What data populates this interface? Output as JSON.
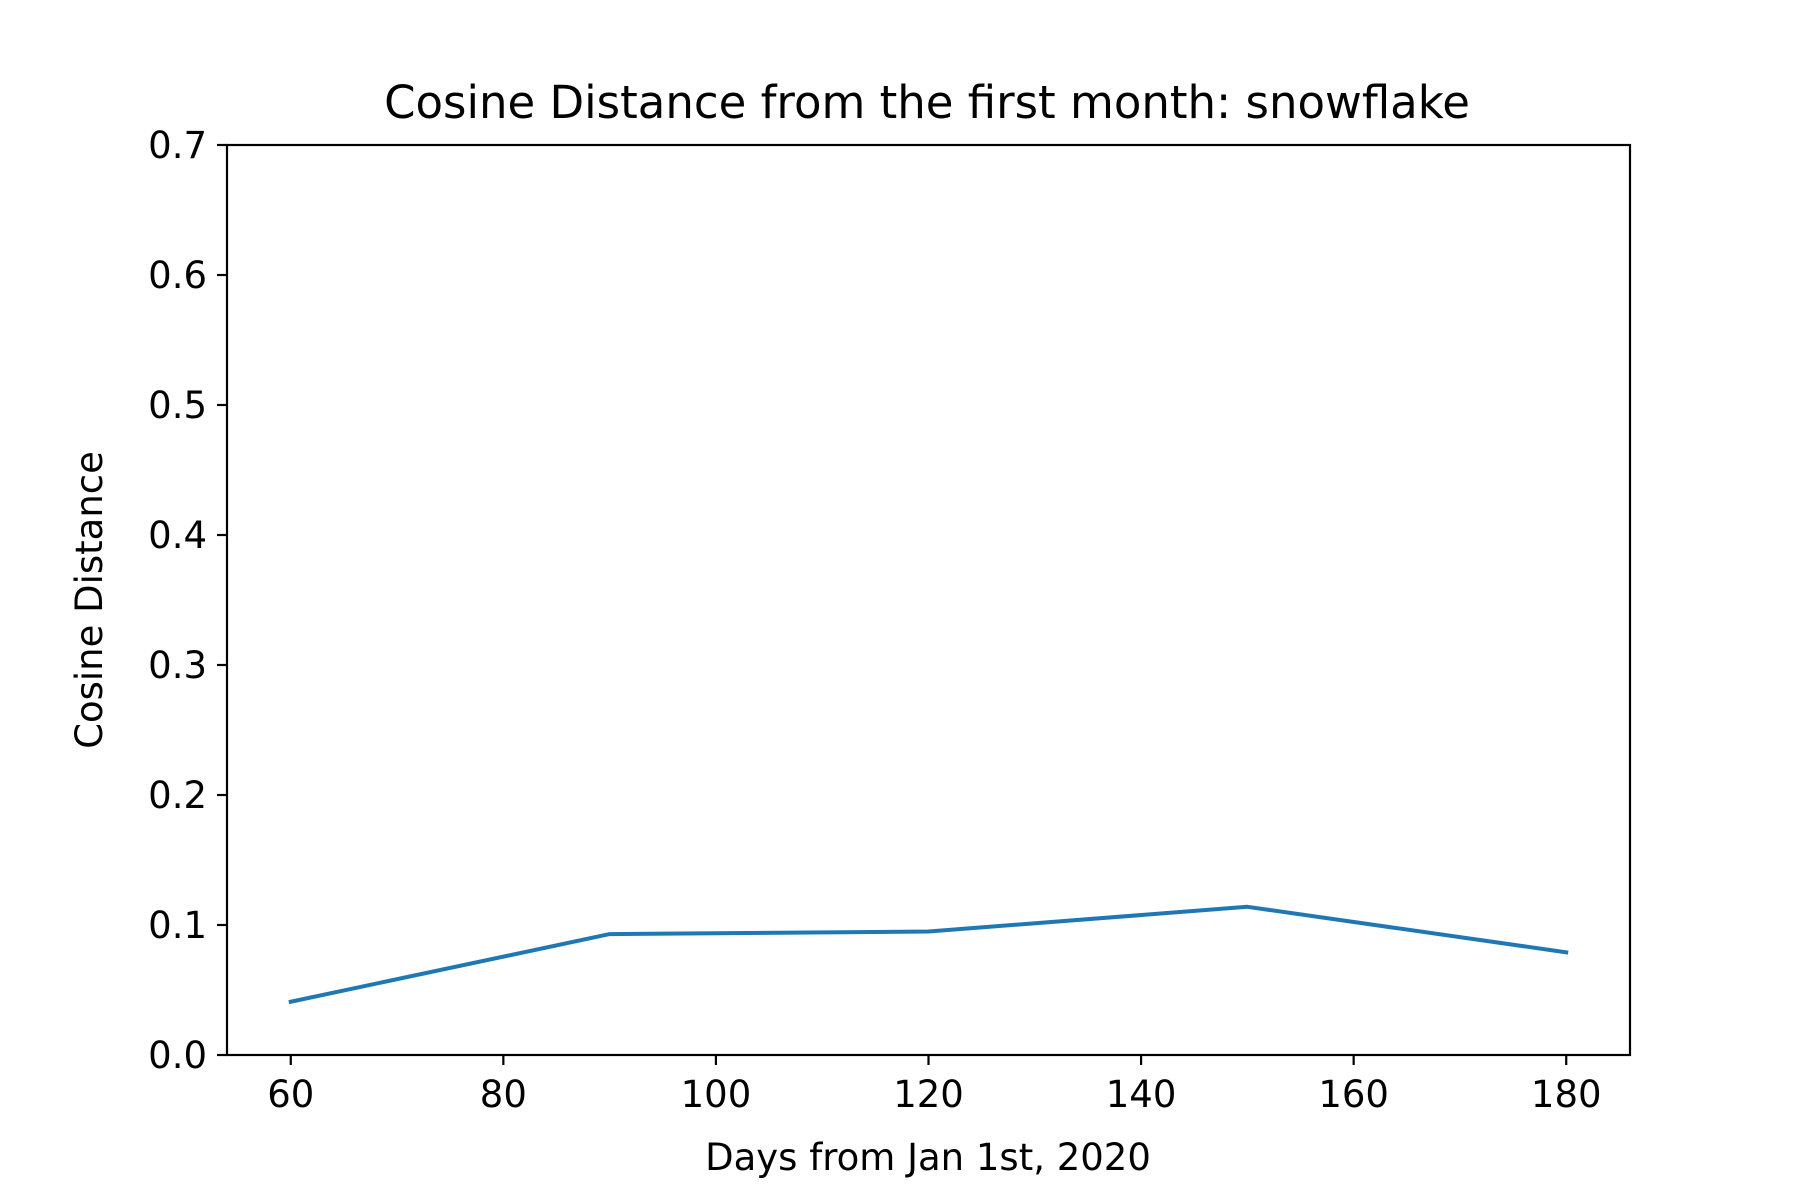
{
  "chart_data": {
    "type": "line",
    "title": "Cosine Distance from the first month: snowflake",
    "xlabel": "Days from Jan 1st, 2020",
    "ylabel": "Cosine Distance",
    "xlim": [
      54,
      186
    ],
    "ylim": [
      0.0,
      0.7
    ],
    "xticks": [
      60,
      80,
      100,
      120,
      140,
      160,
      180
    ],
    "xtick_labels": [
      "60",
      "80",
      "100",
      "120",
      "140",
      "160",
      "180"
    ],
    "yticks": [
      0.0,
      0.1,
      0.2,
      0.3,
      0.4,
      0.5,
      0.6,
      0.7
    ],
    "ytick_labels": [
      "0.0",
      "0.1",
      "0.2",
      "0.3",
      "0.4",
      "0.5",
      "0.6",
      "0.7"
    ],
    "grid": false,
    "series": [
      {
        "color": "#1f77b4",
        "x": [
          60,
          90,
          120,
          150,
          180
        ],
        "y": [
          0.041,
          0.093,
          0.095,
          0.114,
          0.079
        ]
      }
    ]
  }
}
